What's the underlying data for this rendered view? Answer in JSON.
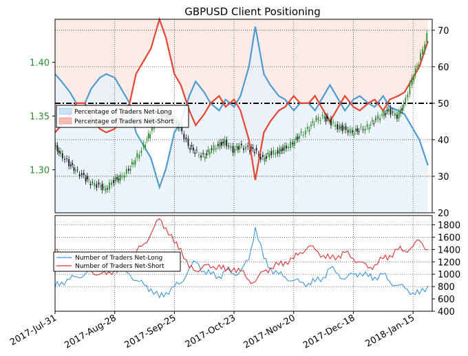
{
  "chart_data": [
    {
      "type": "line+candlestick+area",
      "title": "GBPUSD Client Positioning",
      "left_axis": {
        "ylim": [
          1.26,
          1.44
        ],
        "ticks": [
          1.3,
          1.35,
          1.4
        ],
        "tick_labels": [
          "1.30",
          "1.35",
          "1.40"
        ],
        "color": "#2e8b2e"
      },
      "right_axis": {
        "ylim": [
          20,
          73
        ],
        "ticks": [
          20,
          30,
          40,
          50,
          60,
          70
        ],
        "tick_labels": [
          "20",
          "30",
          "40",
          "50",
          "60",
          "70"
        ]
      },
      "legend": {
        "placement": "center-left",
        "entries": [
          "Percentage of Traders Net-Long",
          "Percentage of Traders Net-Short"
        ]
      },
      "reference_line": 50,
      "series": [
        {
          "name": "Percentage of Traders Net-Long",
          "color": "#4f9bd0",
          "x": [
            "2017-07-31",
            "2017-08-03",
            "2017-08-07",
            "2017-08-10",
            "2017-08-14",
            "2017-08-17",
            "2017-08-21",
            "2017-08-24",
            "2017-08-28",
            "2017-08-31",
            "2017-09-04",
            "2017-09-07",
            "2017-09-11",
            "2017-09-14",
            "2017-09-18",
            "2017-09-21",
            "2017-09-25",
            "2017-09-28",
            "2017-10-02",
            "2017-10-05",
            "2017-10-09",
            "2017-10-12",
            "2017-10-16",
            "2017-10-19",
            "2017-10-23",
            "2017-10-26",
            "2017-10-30",
            "2017-11-02",
            "2017-11-06",
            "2017-11-09",
            "2017-11-13",
            "2017-11-16",
            "2017-11-20",
            "2017-11-23",
            "2017-11-27",
            "2017-11-30",
            "2017-12-04",
            "2017-12-07",
            "2017-12-11",
            "2017-12-14",
            "2017-12-18",
            "2017-12-21",
            "2017-12-25",
            "2017-12-28",
            "2018-01-01",
            "2018-01-04",
            "2018-01-08",
            "2018-01-11",
            "2018-01-15",
            "2018-01-18",
            "2018-01-22"
          ],
          "values": [
            58,
            56,
            53,
            50,
            50,
            54,
            57,
            58,
            57,
            54,
            50,
            42,
            38,
            35,
            27,
            32,
            42,
            45,
            52,
            56,
            53,
            50,
            48,
            51,
            49,
            52,
            60,
            71,
            58,
            55,
            52,
            51,
            48,
            50,
            50,
            48,
            52,
            55,
            51,
            48,
            51,
            52,
            50,
            49,
            52,
            49,
            48,
            47,
            43,
            40,
            33
          ]
        },
        {
          "name": "Percentage of Traders Net-Short",
          "color": "#e8432e",
          "x": [
            "2017-07-31",
            "2017-08-03",
            "2017-08-07",
            "2017-08-10",
            "2017-08-14",
            "2017-08-17",
            "2017-08-21",
            "2017-08-24",
            "2017-08-28",
            "2017-08-31",
            "2017-09-04",
            "2017-09-07",
            "2017-09-11",
            "2017-09-14",
            "2017-09-18",
            "2017-09-21",
            "2017-09-25",
            "2017-09-28",
            "2017-10-02",
            "2017-10-05",
            "2017-10-09",
            "2017-10-12",
            "2017-10-16",
            "2017-10-19",
            "2017-10-23",
            "2017-10-26",
            "2017-10-30",
            "2017-11-02",
            "2017-11-06",
            "2017-11-09",
            "2017-11-13",
            "2017-11-16",
            "2017-11-20",
            "2017-11-23",
            "2017-11-27",
            "2017-11-30",
            "2017-12-04",
            "2017-12-07",
            "2017-12-11",
            "2017-12-14",
            "2017-12-18",
            "2017-12-21",
            "2017-12-25",
            "2017-12-28",
            "2018-01-01",
            "2018-01-04",
            "2018-01-08",
            "2018-01-11",
            "2018-01-15",
            "2018-01-18",
            "2018-01-22"
          ],
          "values": [
            42,
            44,
            47,
            50,
            50,
            46,
            43,
            42,
            43,
            46,
            50,
            58,
            62,
            65,
            73,
            68,
            58,
            55,
            48,
            44,
            47,
            50,
            52,
            49,
            51,
            48,
            40,
            29,
            42,
            45,
            48,
            49,
            52,
            50,
            50,
            52,
            48,
            45,
            49,
            52,
            49,
            48,
            50,
            51,
            48,
            51,
            52,
            53,
            57,
            60,
            67
          ]
        }
      ],
      "price": {
        "name": "GBPUSD",
        "x": [
          "2017-07-31",
          "2017-08-03",
          "2017-08-07",
          "2017-08-10",
          "2017-08-14",
          "2017-08-17",
          "2017-08-21",
          "2017-08-24",
          "2017-08-28",
          "2017-08-31",
          "2017-09-04",
          "2017-09-07",
          "2017-09-11",
          "2017-09-14",
          "2017-09-18",
          "2017-09-21",
          "2017-09-25",
          "2017-09-28",
          "2017-10-02",
          "2017-10-05",
          "2017-10-09",
          "2017-10-12",
          "2017-10-16",
          "2017-10-19",
          "2017-10-23",
          "2017-10-26",
          "2017-10-30",
          "2017-11-02",
          "2017-11-06",
          "2017-11-09",
          "2017-11-13",
          "2017-11-16",
          "2017-11-20",
          "2017-11-23",
          "2017-11-27",
          "2017-11-30",
          "2017-12-04",
          "2017-12-07",
          "2017-12-11",
          "2017-12-14",
          "2017-12-18",
          "2017-12-21",
          "2017-12-25",
          "2017-12-28",
          "2018-01-01",
          "2018-01-04",
          "2018-01-08",
          "2018-01-11",
          "2018-01-15",
          "2018-01-18",
          "2018-01-22"
        ],
        "values": [
          1.322,
          1.315,
          1.305,
          1.3,
          1.293,
          1.288,
          1.285,
          1.282,
          1.29,
          1.293,
          1.3,
          1.31,
          1.322,
          1.335,
          1.355,
          1.35,
          1.345,
          1.34,
          1.322,
          1.317,
          1.312,
          1.318,
          1.323,
          1.326,
          1.318,
          1.322,
          1.32,
          1.318,
          1.31,
          1.315,
          1.317,
          1.32,
          1.325,
          1.332,
          1.338,
          1.345,
          1.35,
          1.345,
          1.34,
          1.338,
          1.335,
          1.337,
          1.34,
          1.345,
          1.352,
          1.355,
          1.35,
          1.36,
          1.385,
          1.4,
          1.425
        ]
      }
    },
    {
      "type": "line",
      "axis": {
        "ylim": [
          400,
          1950
        ],
        "ticks": [
          400,
          600,
          800,
          1000,
          1200,
          1400,
          1600,
          1800
        ],
        "tick_labels": [
          "400",
          "600",
          "800",
          "1000",
          "1200",
          "1400",
          "1600",
          "1800"
        ]
      },
      "legend": {
        "placement": "left",
        "entries": [
          "Number of Traders Net-Long",
          "Number of Traders Net-Short"
        ]
      },
      "x_tick_labels": [
        "2017-Jul-31",
        "2017-Aug-28",
        "2017-Sep-25",
        "2017-Oct-23",
        "2017-Nov-20",
        "2017-Dec-18",
        "2018-Jan-15"
      ],
      "series": [
        {
          "name": "Number of Traders Net-Long",
          "color": "#3a95e0",
          "x": [
            "2017-07-31",
            "2017-08-03",
            "2017-08-07",
            "2017-08-10",
            "2017-08-14",
            "2017-08-17",
            "2017-08-21",
            "2017-08-24",
            "2017-08-28",
            "2017-08-31",
            "2017-09-04",
            "2017-09-07",
            "2017-09-11",
            "2017-09-14",
            "2017-09-18",
            "2017-09-21",
            "2017-09-25",
            "2017-09-28",
            "2017-10-02",
            "2017-10-05",
            "2017-10-09",
            "2017-10-12",
            "2017-10-16",
            "2017-10-19",
            "2017-10-23",
            "2017-10-26",
            "2017-10-30",
            "2017-11-02",
            "2017-11-06",
            "2017-11-09",
            "2017-11-13",
            "2017-11-16",
            "2017-11-20",
            "2017-11-23",
            "2017-11-27",
            "2017-11-30",
            "2017-12-04",
            "2017-12-07",
            "2017-12-11",
            "2017-12-14",
            "2017-12-18",
            "2017-12-21",
            "2017-12-25",
            "2017-12-28",
            "2018-01-01",
            "2018-01-04",
            "2018-01-08",
            "2018-01-11",
            "2018-01-15",
            "2018-01-18",
            "2018-01-22"
          ],
          "values": [
            800,
            870,
            920,
            960,
            1000,
            1080,
            1120,
            1150,
            1100,
            1060,
            1000,
            900,
            820,
            760,
            620,
            700,
            800,
            850,
            1100,
            1200,
            1050,
            1000,
            960,
            1050,
            1000,
            1050,
            1230,
            1760,
            1250,
            1100,
            1000,
            950,
            900,
            870,
            850,
            880,
            950,
            1100,
            1000,
            920,
            1000,
            1020,
            960,
            950,
            1000,
            880,
            820,
            780,
            700,
            680,
            810
          ]
        },
        {
          "name": "Number of Traders Net-Short",
          "color": "#e03030",
          "x": [
            "2017-07-31",
            "2017-08-03",
            "2017-08-07",
            "2017-08-10",
            "2017-08-14",
            "2017-08-17",
            "2017-08-21",
            "2017-08-24",
            "2017-08-28",
            "2017-08-31",
            "2017-09-04",
            "2017-09-07",
            "2017-09-11",
            "2017-09-14",
            "2017-09-18",
            "2017-09-21",
            "2017-09-25",
            "2017-09-28",
            "2017-10-02",
            "2017-10-05",
            "2017-10-09",
            "2017-10-12",
            "2017-10-16",
            "2017-10-19",
            "2017-10-23",
            "2017-10-26",
            "2017-10-30",
            "2017-11-02",
            "2017-11-06",
            "2017-11-09",
            "2017-11-13",
            "2017-11-16",
            "2017-11-20",
            "2017-11-23",
            "2017-11-27",
            "2017-11-30",
            "2017-12-04",
            "2017-12-07",
            "2017-12-11",
            "2017-12-14",
            "2017-12-18",
            "2017-12-21",
            "2017-12-25",
            "2017-12-28",
            "2018-01-01",
            "2018-01-04",
            "2018-01-08",
            "2018-01-11",
            "2018-01-15",
            "2018-01-18",
            "2018-01-22"
          ],
          "values": [
            1400,
            1350,
            1250,
            1150,
            1100,
            1050,
            1000,
            1000,
            1080,
            1100,
            1200,
            1350,
            1500,
            1650,
            1900,
            1750,
            1500,
            1420,
            1100,
            1050,
            1150,
            1100,
            1150,
            1050,
            1100,
            1050,
            900,
            880,
            1050,
            1100,
            1150,
            1200,
            1250,
            1350,
            1450,
            1400,
            1300,
            1250,
            1300,
            1350,
            1250,
            1200,
            1100,
            1150,
            1250,
            1300,
            1400,
            1380,
            1450,
            1550,
            1400
          ]
        }
      ]
    }
  ]
}
